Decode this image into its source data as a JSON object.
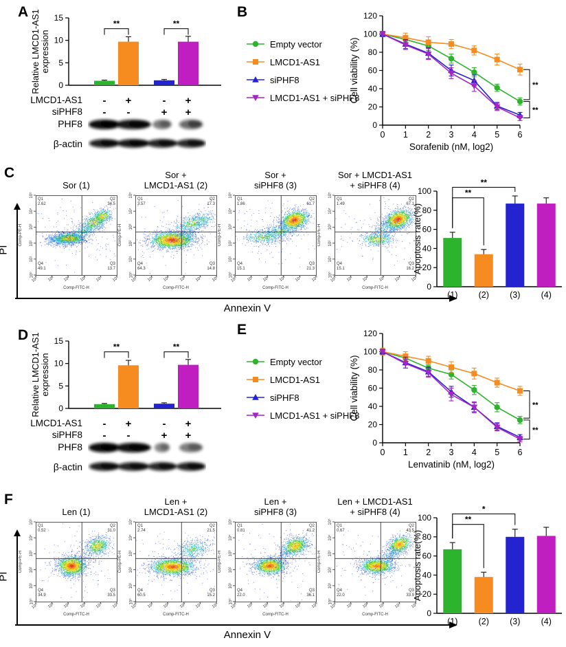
{
  "colors": {
    "green": "#2db32d",
    "orange": "#f68b1f",
    "blue": "#2323cf",
    "magenta": "#c11ec1",
    "purple": "#a424c4"
  },
  "flow_common": {
    "x_axis_label": "Comp-FITC-H",
    "y_axis_label": "Comp-PE-H",
    "ticks": [
      "10⁰",
      "10¹",
      "10²",
      "10³",
      "10⁴",
      "10⁵"
    ],
    "quadrant_names": [
      "Q1",
      "Q2",
      "Q3",
      "Q4"
    ]
  },
  "panels": {
    "A": {
      "label": "A",
      "conditions": [
        {
          "name": "LMCD1-AS1",
          "values": [
            "-",
            "+",
            "-",
            "+"
          ]
        },
        {
          "name": "siPHF8",
          "values": [
            "-",
            "-",
            "+",
            "+"
          ]
        }
      ],
      "blots": [
        {
          "name": "PHF8",
          "bands": [
            1,
            0.95,
            0.5,
            0.62
          ],
          "widths": [
            0.27,
            0.3,
            0.16,
            0.2
          ]
        },
        {
          "name": "β-actin",
          "bands": [
            0.92,
            0.95,
            0.9,
            0.88
          ],
          "widths": [
            0.26,
            0.28,
            0.26,
            0.25
          ]
        }
      ]
    },
    "B": {
      "label": "B",
      "legend": [
        {
          "label": "Empty vector",
          "marker": "circle",
          "color": "green"
        },
        {
          "label": "LMCD1-AS1",
          "marker": "square",
          "color": "orange"
        },
        {
          "label": "siPHF8",
          "marker": "triangle-up",
          "color": "blue"
        },
        {
          "label": "LMCD1-AS1 + siPHF8",
          "marker": "triangle-down",
          "color": "purple"
        }
      ]
    },
    "C": {
      "label": "C",
      "y_axis": "PI",
      "x_axis": "Annexin V",
      "flow_plots": [
        {
          "title": [
            "Sor (1)"
          ],
          "quadrants": {
            "Q1": "2.62",
            "Q2": "34.5",
            "Q3": "13.7",
            "Q4": "49.1"
          },
          "seed": 11,
          "clusters": [
            [
              0.4,
              0.54,
              0.1,
              0.035,
              1300,
              0.75,
              0
            ],
            [
              0.3,
              0.56,
              0.1,
              0.04,
              300,
              0.35,
              0
            ],
            [
              0.6,
              0.44,
              0.1,
              0.045,
              350,
              0.45,
              -20
            ],
            [
              0.73,
              0.33,
              0.09,
              0.05,
              550,
              0.7,
              -25
            ],
            [
              0.82,
              0.26,
              0.06,
              0.04,
              350,
              0.75,
              -25
            ],
            [
              0.5,
              0.5,
              0.3,
              0.22,
              140,
              0,
              0
            ]
          ]
        },
        {
          "title": [
            "Sor +",
            "LMCD1-AS1 (2)"
          ],
          "quadrants": {
            "Q1": "3.57",
            "Q2": "17.3",
            "Q3": "14.8",
            "Q4": "64.3"
          },
          "seed": 22,
          "clusters": [
            [
              0.45,
              0.56,
              0.13,
              0.05,
              2200,
              1,
              0
            ],
            [
              0.62,
              0.5,
              0.08,
              0.05,
              250,
              0.4,
              0
            ],
            [
              0.7,
              0.35,
              0.11,
              0.05,
              450,
              0.55,
              -15
            ],
            [
              0.84,
              0.3,
              0.07,
              0.05,
              200,
              0.45,
              -20
            ],
            [
              0.5,
              0.52,
              0.3,
              0.2,
              150,
              0,
              0
            ]
          ]
        },
        {
          "title": [
            "Sor +",
            "siPHF8 (3)"
          ],
          "quadrants": {
            "Q1": "1.86",
            "Q2": "61.7",
            "Q3": "21.3",
            "Q4": "15.1"
          },
          "seed": 33,
          "clusters": [
            [
              0.73,
              0.31,
              0.085,
              0.055,
              1500,
              1,
              -20
            ],
            [
              0.55,
              0.45,
              0.12,
              0.05,
              450,
              0.5,
              -12
            ],
            [
              0.35,
              0.52,
              0.12,
              0.045,
              450,
              0.55,
              0
            ],
            [
              0.5,
              0.45,
              0.3,
              0.22,
              140,
              0,
              0
            ]
          ]
        },
        {
          "title": [
            "Sor + LMCD1-AS1",
            "+ siPHF8 (4)"
          ],
          "quadrants": {
            "Q1": "1.49",
            "Q2": "67.1",
            "Q3": "16.2",
            "Q4": "15.1"
          },
          "seed": 44,
          "clusters": [
            [
              0.78,
              0.3,
              0.085,
              0.055,
              1500,
              1,
              -22
            ],
            [
              0.63,
              0.4,
              0.08,
              0.05,
              250,
              0.4,
              -20
            ],
            [
              0.52,
              0.55,
              0.1,
              0.04,
              500,
              0.65,
              0
            ],
            [
              0.5,
              0.45,
              0.3,
              0.22,
              130,
              0,
              0
            ]
          ]
        }
      ]
    },
    "D": {
      "label": "D",
      "conditions": [
        {
          "name": "LMCD1-AS1",
          "values": [
            "-",
            "+",
            "-",
            "+"
          ]
        },
        {
          "name": "siPHF8",
          "values": [
            "-",
            "-",
            "+",
            "+"
          ]
        }
      ],
      "blots": [
        {
          "name": "PHF8",
          "bands": [
            1,
            0.98,
            0.45,
            0.5
          ],
          "widths": [
            0.27,
            0.3,
            0.13,
            0.2
          ]
        },
        {
          "name": "β-actin",
          "bands": [
            0.92,
            0.9,
            0.88,
            0.9
          ],
          "widths": [
            0.26,
            0.27,
            0.25,
            0.25
          ]
        }
      ]
    },
    "E": {
      "label": "E",
      "legend": [
        {
          "label": "Empty vector",
          "marker": "circle",
          "color": "green"
        },
        {
          "label": "LMCD1-AS1",
          "marker": "square",
          "color": "orange"
        },
        {
          "label": "siPHF8",
          "marker": "triangle-up",
          "color": "blue"
        },
        {
          "label": "LMCD1-AS1 + siPHF8",
          "marker": "triangle-down",
          "color": "purple"
        }
      ]
    },
    "F": {
      "label": "F",
      "y_axis": "PI",
      "x_axis": "Annexin V",
      "flow_plots": [
        {
          "title": [
            "Len (1)"
          ],
          "quadrants": {
            "Q1": "0.52",
            "Q2": "31.0",
            "Q3": "33.5",
            "Q4": "34.9"
          },
          "seed": 55,
          "clusters": [
            [
              0.44,
              0.55,
              0.085,
              0.06,
              1800,
              1,
              0
            ],
            [
              0.76,
              0.3,
              0.075,
              0.055,
              700,
              0.7,
              -25
            ],
            [
              0.6,
              0.45,
              0.1,
              0.06,
              120,
              0.2,
              -20
            ],
            [
              0.5,
              0.5,
              0.3,
              0.22,
              130,
              0,
              0
            ]
          ]
        },
        {
          "title": [
            "Len +",
            "LMCD1-AS1 (2)"
          ],
          "quadrants": {
            "Q1": "2.74",
            "Q2": "21.5",
            "Q3": "15.2",
            "Q4": "60.5"
          },
          "seed": 66,
          "clusters": [
            [
              0.46,
              0.56,
              0.13,
              0.05,
              2000,
              0.95,
              0
            ],
            [
              0.7,
              0.34,
              0.12,
              0.06,
              500,
              0.45,
              -18
            ],
            [
              0.5,
              0.5,
              0.32,
              0.22,
              150,
              0,
              0
            ]
          ]
        },
        {
          "title": [
            "Len +",
            "siPHF8 (3)"
          ],
          "quadrants": {
            "Q1": "0.81",
            "Q2": "41.2",
            "Q3": "36.1",
            "Q4": "22.0"
          },
          "seed": 77,
          "clusters": [
            [
              0.43,
              0.55,
              0.09,
              0.05,
              1500,
              0.95,
              0
            ],
            [
              0.74,
              0.3,
              0.08,
              0.055,
              1000,
              0.8,
              -22
            ],
            [
              0.6,
              0.43,
              0.09,
              0.05,
              150,
              0.2,
              -25
            ],
            [
              0.5,
              0.48,
              0.3,
              0.22,
              140,
              0,
              0
            ]
          ]
        },
        {
          "title": [
            "Len + LMCD1-AS1",
            "+ siPHF8 (4)"
          ],
          "quadrants": {
            "Q1": "0.67",
            "Q2": "43.5",
            "Q3": "33.9",
            "Q4": "22.0"
          },
          "seed": 88,
          "clusters": [
            [
              0.52,
              0.55,
              0.1,
              0.045,
              1400,
              0.9,
              0
            ],
            [
              0.8,
              0.28,
              0.075,
              0.05,
              900,
              0.85,
              -28
            ],
            [
              0.68,
              0.42,
              0.08,
              0.05,
              200,
              0.3,
              -30
            ],
            [
              0.5,
              0.48,
              0.3,
              0.22,
              120,
              0,
              0
            ]
          ]
        }
      ]
    }
  },
  "chart_data": [
    {
      "id": "A-bar",
      "type": "bar",
      "ylabel": "Relative LMCD1-AS1 expression",
      "ylabel_lines": [
        "Relative LMCD1-AS1",
        "expression"
      ],
      "ylim": [
        0,
        15
      ],
      "yticks": [
        0,
        5,
        10,
        15
      ],
      "values": [
        1.0,
        9.7,
        1.1,
        9.7
      ],
      "errors": [
        0.15,
        1.1,
        0.2,
        1.2
      ],
      "bar_colors": [
        "green",
        "orange",
        "blue",
        "magenta"
      ],
      "significance": [
        {
          "a": 0,
          "b": 1,
          "label": "**",
          "y": 12.6
        },
        {
          "a": 2,
          "b": 3,
          "label": "**",
          "y": 12.6
        }
      ]
    },
    {
      "id": "B-line",
      "type": "line",
      "ylabel": "Cell viability (%)",
      "xlabel": "Sorafenib (nM, log2)",
      "ylim": [
        0,
        120
      ],
      "yticks": [
        0,
        20,
        40,
        60,
        80,
        100,
        120
      ],
      "x": [
        0,
        1,
        2,
        3,
        4,
        5,
        6
      ],
      "legend_position": "left",
      "series": [
        {
          "name": "Empty vector",
          "color": "green",
          "marker": "circle",
          "values": [
            100,
            94,
            87,
            73,
            58,
            41,
            26
          ],
          "errors": [
            3,
            4,
            5,
            5,
            5,
            4,
            4
          ]
        },
        {
          "name": "LMCD1-AS1",
          "color": "orange",
          "marker": "square",
          "values": [
            100,
            96,
            91,
            89,
            82,
            72,
            61
          ],
          "errors": [
            3,
            5,
            6,
            5,
            5,
            6,
            6
          ]
        },
        {
          "name": "siPHF8",
          "color": "blue",
          "marker": "triangle-up",
          "values": [
            100,
            89,
            79,
            60,
            49,
            21,
            11
          ],
          "errors": [
            3,
            5,
            6,
            6,
            6,
            4,
            3
          ]
        },
        {
          "name": "LMCD1-AS1 + siPHF8",
          "color": "purple",
          "marker": "triangle-down",
          "values": [
            100,
            88,
            78,
            57,
            43,
            20,
            8
          ],
          "errors": [
            3,
            5,
            6,
            6,
            6,
            4,
            3
          ]
        }
      ],
      "significance": [
        {
          "y1": 61,
          "y2": 28,
          "label": "**"
        },
        {
          "y1": 26,
          "y2": 8,
          "label": "**"
        }
      ]
    },
    {
      "id": "C-bar",
      "type": "bar",
      "ylabel": "Apoptosis rate(%)",
      "ylim": [
        0,
        100
      ],
      "yticks": [
        0,
        20,
        40,
        60,
        80,
        100
      ],
      "categories": [
        "(1)",
        "(2)",
        "(3)",
        "(4)"
      ],
      "values": [
        51,
        34,
        87,
        87
      ],
      "errors": [
        6,
        5,
        8,
        6
      ],
      "bar_colors": [
        "green",
        "orange",
        "blue",
        "magenta"
      ],
      "significance": [
        {
          "a": 0,
          "b": 1,
          "label": "**",
          "y": 93
        },
        {
          "a": 0,
          "b": 2,
          "label": "**",
          "y": 104
        }
      ]
    },
    {
      "id": "D-bar",
      "type": "bar",
      "ylabel": "Relative LMCD1-AS1 expression",
      "ylabel_lines": [
        "Relative LMCD1-AS1",
        "expression"
      ],
      "ylim": [
        0,
        15
      ],
      "yticks": [
        0,
        5,
        10,
        15
      ],
      "values": [
        0.95,
        9.6,
        1.05,
        9.7
      ],
      "errors": [
        0.15,
        1.1,
        0.2,
        1.2
      ],
      "bar_colors": [
        "green",
        "orange",
        "blue",
        "magenta"
      ],
      "significance": [
        {
          "a": 0,
          "b": 1,
          "label": "**",
          "y": 12.6
        },
        {
          "a": 2,
          "b": 3,
          "label": "**",
          "y": 12.6
        }
      ]
    },
    {
      "id": "E-line",
      "type": "line",
      "ylabel": "Cell viability (%)",
      "xlabel": "Lenvatinib (nM, log2)",
      "ylim": [
        0,
        120
      ],
      "yticks": [
        0,
        20,
        40,
        60,
        80,
        100,
        120
      ],
      "x": [
        0,
        1,
        2,
        3,
        4,
        5,
        6
      ],
      "legend_position": "left",
      "series": [
        {
          "name": "Empty vector",
          "color": "green",
          "marker": "circle",
          "values": [
            100,
            93,
            82,
            75,
            58,
            39,
            25
          ],
          "errors": [
            3,
            4,
            4,
            5,
            5,
            5,
            4
          ]
        },
        {
          "name": "LMCD1-AS1",
          "color": "orange",
          "marker": "square",
          "values": [
            100,
            95,
            90,
            83,
            76,
            66,
            57
          ],
          "errors": [
            4,
            5,
            5,
            6,
            6,
            5,
            5
          ]
        },
        {
          "name": "siPHF8",
          "color": "blue",
          "marker": "triangle-up",
          "values": [
            100,
            88,
            78,
            56,
            39,
            18,
            6
          ],
          "errors": [
            3,
            6,
            5,
            6,
            5,
            4,
            3
          ]
        },
        {
          "name": "LMCD1-AS1 + siPHF8",
          "color": "purple",
          "marker": "triangle-down",
          "values": [
            100,
            87,
            77,
            53,
            39,
            17,
            4
          ],
          "errors": [
            3,
            5,
            5,
            7,
            6,
            4,
            3
          ]
        }
      ],
      "significance": [
        {
          "y1": 57,
          "y2": 27,
          "label": "**"
        },
        {
          "y1": 25,
          "y2": 4,
          "label": "**"
        }
      ]
    },
    {
      "id": "F-bar",
      "type": "bar",
      "ylabel": "Apoptosis rate(%)",
      "ylim": [
        0,
        100
      ],
      "yticks": [
        0,
        20,
        40,
        60,
        80,
        100
      ],
      "categories": [
        "(1)",
        "(2)",
        "(3)",
        "(4)"
      ],
      "values": [
        67,
        38,
        80,
        81
      ],
      "errors": [
        7,
        5,
        8,
        9
      ],
      "bar_colors": [
        "green",
        "orange",
        "blue",
        "magenta"
      ],
      "significance": [
        {
          "a": 0,
          "b": 1,
          "label": "**",
          "y": 93
        },
        {
          "a": 0,
          "b": 2,
          "label": "*",
          "y": 104
        }
      ]
    }
  ]
}
